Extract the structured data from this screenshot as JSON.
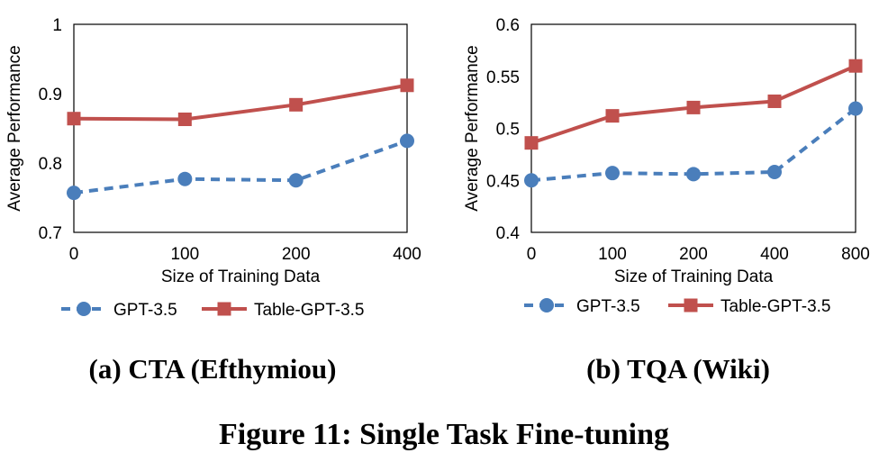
{
  "figure_caption": "Figure 11: Single Task Fine-tuning",
  "colors": {
    "gpt35": "#4a7ebb",
    "table_gpt35": "#c0504d",
    "axis": "#000000"
  },
  "chart_data": [
    {
      "type": "line",
      "caption": "(a) CTA (Efthymiou)",
      "xlabel": "Size of Training Data",
      "ylabel": "Average Performance",
      "categories": [
        "0",
        "100",
        "200",
        "400"
      ],
      "ylim": [
        0.7,
        1.0
      ],
      "yticks": [
        0.7,
        0.8,
        0.9,
        1.0
      ],
      "ytick_labels": [
        "0.7",
        "0.8",
        "0.9",
        "1"
      ],
      "grid": false,
      "legend_position": "bottom",
      "series": [
        {
          "name": "GPT-3.5",
          "values": [
            0.757,
            0.777,
            0.775,
            0.832
          ],
          "style": "dashed",
          "marker": "circle",
          "color": "#4a7ebb"
        },
        {
          "name": "Table-GPT-3.5",
          "values": [
            0.864,
            0.863,
            0.884,
            0.912
          ],
          "style": "solid",
          "marker": "square",
          "color": "#c0504d"
        }
      ]
    },
    {
      "type": "line",
      "caption": "(b) TQA (Wiki)",
      "xlabel": "Size of Training Data",
      "ylabel": "Average Performance",
      "categories": [
        "0",
        "100",
        "200",
        "400",
        "800"
      ],
      "ylim": [
        0.4,
        0.6
      ],
      "yticks": [
        0.4,
        0.45,
        0.5,
        0.55,
        0.6
      ],
      "ytick_labels": [
        "0.4",
        "0.45",
        "0.5",
        "0.55",
        "0.6"
      ],
      "grid": false,
      "legend_position": "bottom",
      "series": [
        {
          "name": "GPT-3.5",
          "values": [
            0.45,
            0.457,
            0.456,
            0.458,
            0.519
          ],
          "style": "dashed",
          "marker": "circle",
          "color": "#4a7ebb"
        },
        {
          "name": "Table-GPT-3.5",
          "values": [
            0.486,
            0.512,
            0.52,
            0.526,
            0.56
          ],
          "style": "solid",
          "marker": "square",
          "color": "#c0504d"
        }
      ]
    }
  ]
}
